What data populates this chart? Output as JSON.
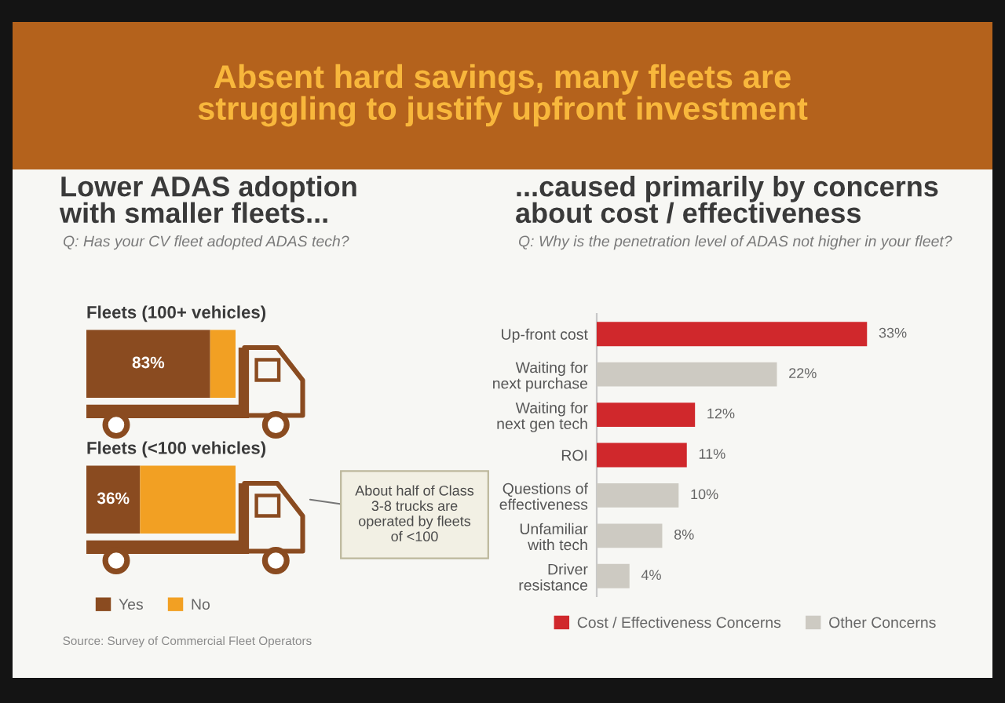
{
  "chart_data": [
    {
      "type": "other",
      "title": "Absent hard savings, many fleets are\nstruggling to justify upfront investment",
      "annotations": [
        "Source: Survey of Commercial Fleet Operators"
      ]
    },
    {
      "type": "bar",
      "orientation": "horizontal",
      "stacked": true,
      "title": "Lower ADAS adoption\nwith smaller fleets...",
      "subtitle": "Q: Has your CV fleet adopted ADAS tech?",
      "categories": [
        "Fleets (100+ vehicles)",
        "Fleets (<100 vehicles)"
      ],
      "series": [
        {
          "name": "Yes",
          "color": "#8a4b20",
          "values": [
            83,
            36
          ],
          "value_labels": [
            "83%",
            "36%"
          ]
        },
        {
          "name": "No",
          "color": "#f2a023",
          "values": [
            17,
            64
          ]
        }
      ],
      "xlim": [
        0,
        100
      ],
      "tick_labels": false,
      "legend": "bottom left",
      "annotations": [
        "About half of Class\n3-8 trucks are\noperated by fleets\nof <100"
      ]
    },
    {
      "type": "bar",
      "orientation": "horizontal",
      "title": "...caused primarily by concerns\nabout cost / effectiveness",
      "subtitle": "Q: Why is the penetration level of ADAS not higher in your fleet?",
      "categories": [
        "Up-front cost",
        "Waiting for\nnext purchase",
        "Waiting for\nnext gen tech",
        "ROI",
        "Questions of\neffectiveness",
        "Unfamiliar\nwith tech",
        "Driver\nresistance"
      ],
      "series": [
        {
          "name": "Cost / Effectiveness Concerns",
          "color": "#d0282c",
          "values": [
            33,
            null,
            12,
            11,
            null,
            null,
            null
          ],
          "value_labels": [
            "33%",
            null,
            "12%",
            "11%",
            null,
            null,
            null
          ]
        },
        {
          "name": "Other Concerns",
          "color": "#cdcac2",
          "values": [
            null,
            22,
            null,
            null,
            10,
            8,
            4
          ],
          "value_labels": [
            null,
            "22%",
            null,
            null,
            "10%",
            "8%",
            "4%"
          ]
        }
      ],
      "tick_labels": "y",
      "legend": "bottom"
    }
  ]
}
